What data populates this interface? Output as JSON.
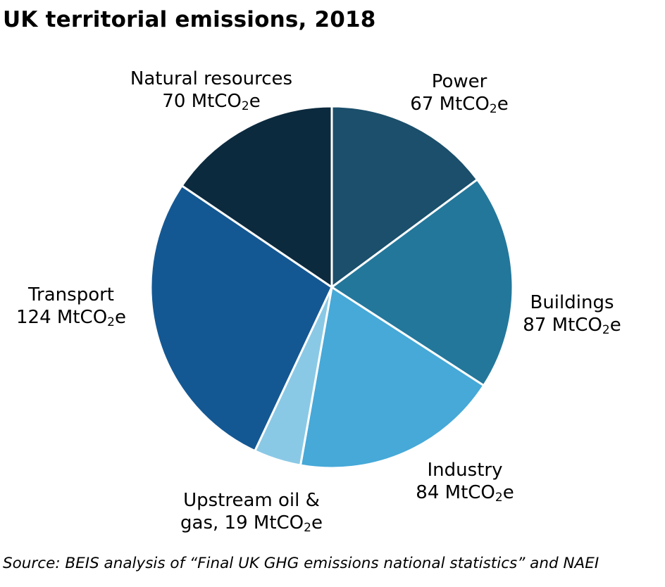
{
  "title": "UK territorial emissions, 2018",
  "source": "Source: BEIS analysis of “Final UK GHG emissions national statistics” and NAEI",
  "unit_prefix": "MtCO",
  "unit_subscript": "2",
  "unit_suffix": "e",
  "chart_data": {
    "type": "pie",
    "title": "UK territorial emissions, 2018",
    "unit": "MtCO2e",
    "slices": [
      {
        "label": "Power",
        "value": 67,
        "value_label": "67",
        "color": "#1b4f6b"
      },
      {
        "label": "Buildings",
        "value": 87,
        "value_label": "87",
        "color": "#23779b"
      },
      {
        "label": "Industry",
        "value": 84,
        "value_label": "84",
        "color": "#46a9d8"
      },
      {
        "label": "Upstream oil &",
        "label_line2": "gas,",
        "value": 19,
        "value_label": "19",
        "color": "#8ac9e6"
      },
      {
        "label": "Transport",
        "value": 124,
        "value_label": "124",
        "color": "#145893"
      },
      {
        "label": "Natural resources",
        "value": 70,
        "value_label": "70",
        "color": "#0c2a3e"
      }
    ]
  }
}
